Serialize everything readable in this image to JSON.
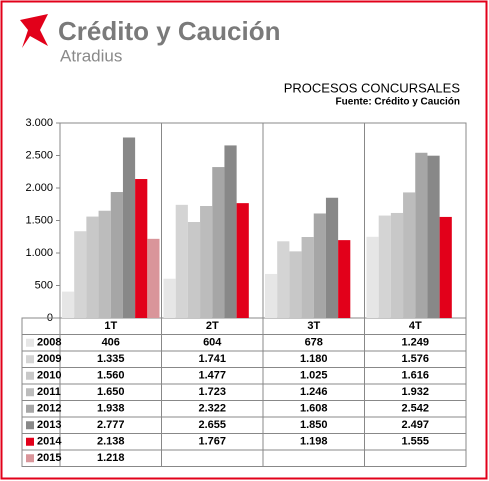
{
  "logo": {
    "name": "Crédito y Caución",
    "tagline": "Atradius"
  },
  "chart_data": {
    "type": "bar",
    "title": "PROCESOS CONCURSALES",
    "subtitle": "Fuente: Crédito y Caución",
    "categories": [
      "1T",
      "2T",
      "3T",
      "4T"
    ],
    "ylim": [
      0,
      3000
    ],
    "yticks": [
      0,
      500,
      {
        "value": 1000,
        "label": "1.000"
      },
      {
        "value": 1500,
        "label": "1.500"
      },
      {
        "value": 2000,
        "label": "2.000"
      },
      {
        "value": 2500,
        "label": "2.500"
      },
      {
        "value": 3000,
        "label": "3.000"
      }
    ],
    "grid": false,
    "series": [
      {
        "name": "2008",
        "color": "#e6e6e6",
        "values": [
          406,
          604,
          678,
          1249
        ],
        "value_labels": [
          "406",
          "604",
          "678",
          "1.249"
        ]
      },
      {
        "name": "2009",
        "color": "#d4d4d4",
        "values": [
          1335,
          1741,
          1180,
          1576
        ],
        "value_labels": [
          "1.335",
          "1.741",
          "1.180",
          "1.576"
        ]
      },
      {
        "name": "2010",
        "color": "#c8c8c8",
        "values": [
          1560,
          1477,
          1025,
          1616
        ],
        "value_labels": [
          "1.560",
          "1.477",
          "1.025",
          "1.616"
        ]
      },
      {
        "name": "2011",
        "color": "#bcbcbc",
        "values": [
          1650,
          1723,
          1246,
          1932
        ],
        "value_labels": [
          "1.650",
          "1.723",
          "1.246",
          "1.932"
        ]
      },
      {
        "name": "2012",
        "color": "#a6a6a6",
        "values": [
          1938,
          2322,
          1608,
          2542
        ],
        "value_labels": [
          "1.938",
          "2.322",
          "1.608",
          "2.542"
        ]
      },
      {
        "name": "2013",
        "color": "#888888",
        "values": [
          2777,
          2655,
          1850,
          2497
        ],
        "value_labels": [
          "2.777",
          "2.655",
          "1.850",
          "2.497"
        ]
      },
      {
        "name": "2014",
        "color": "#e2001a",
        "values": [
          2138,
          1767,
          1198,
          1555
        ],
        "value_labels": [
          "2.138",
          "1.767",
          "1.198",
          "1.555"
        ]
      },
      {
        "name": "2015",
        "color": "#d9959a",
        "values": [
          1218,
          null,
          null,
          null
        ],
        "value_labels": [
          "1.218",
          null,
          null,
          null
        ]
      }
    ]
  }
}
